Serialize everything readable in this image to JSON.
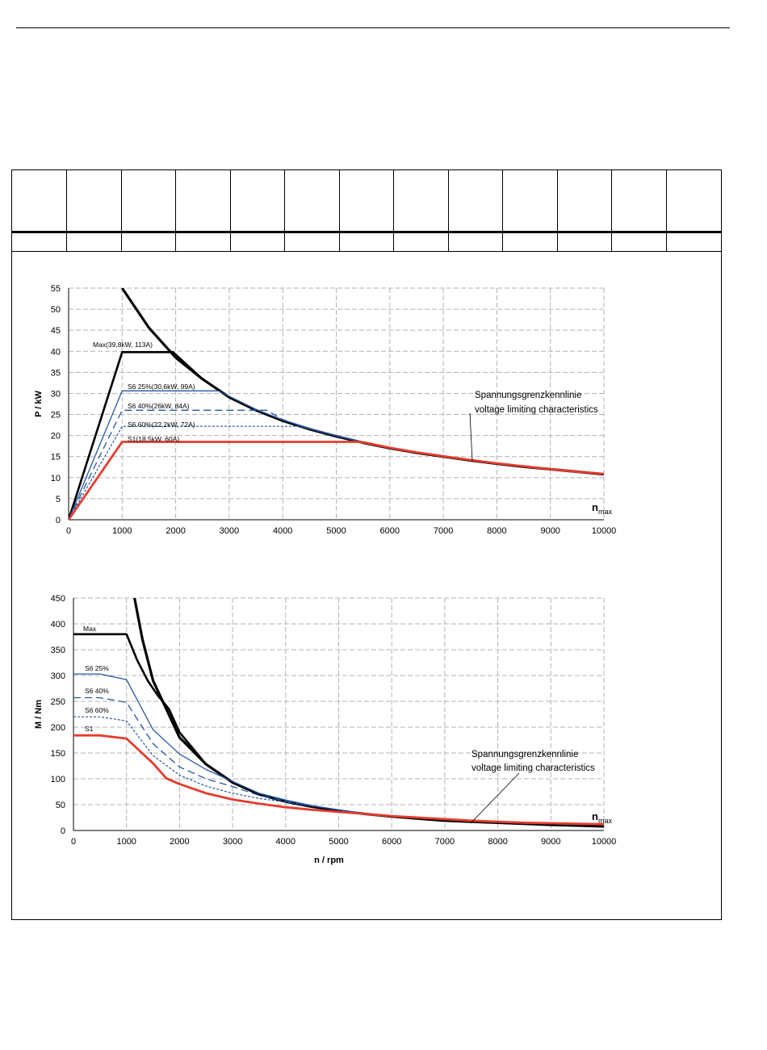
{
  "colors": {
    "max": "#000000",
    "s6": "#2457a4",
    "s1": "#e63c2e",
    "grid": "#b3b3b3"
  },
  "chart_data": [
    {
      "type": "line",
      "xlabel": "",
      "ylabel": "P / kW",
      "xlim": [
        0,
        10000
      ],
      "ylim": [
        0,
        55
      ],
      "xticks": [
        0,
        1000,
        2000,
        3000,
        4000,
        5000,
        6000,
        7000,
        8000,
        9000,
        10000
      ],
      "yticks": [
        0,
        5,
        10,
        15,
        20,
        25,
        30,
        35,
        40,
        45,
        50,
        55
      ],
      "grid": true,
      "nmax_label": {
        "main": "n",
        "sub": "max"
      },
      "annotation": {
        "line1": "Spannungsgrenzkennlinie",
        "line2": "voltage limiting characteristics"
      },
      "series": [
        {
          "name": "Max(39,8kW, 113A)",
          "style": "max",
          "x": [
            0,
            1000,
            1950,
            2500,
            3000,
            3500,
            4000,
            4500,
            5000,
            5500,
            6000,
            6500,
            7000,
            7500,
            8000,
            8500,
            9000,
            9500,
            10000
          ],
          "y": [
            0,
            39.8,
            39.8,
            33.4,
            29.1,
            26.0,
            23.5,
            21.5,
            19.8,
            18.3,
            17.0,
            15.9,
            15.0,
            14.1,
            13.3,
            12.6,
            12.0,
            11.4,
            10.8
          ]
        },
        {
          "name": "S6 25%(30,6kW, 99A)",
          "style": "s6solid",
          "x": [
            0,
            1000,
            2800,
            3000,
            3500,
            4000,
            4500,
            5000,
            5500,
            6000,
            6500,
            7000,
            7500,
            8000,
            8500,
            9000,
            9500,
            10000
          ],
          "y": [
            0,
            30.6,
            30.6,
            29.3,
            26.2,
            23.7,
            21.6,
            19.9,
            18.4,
            17.1,
            16.0,
            15.1,
            14.2,
            13.4,
            12.7,
            12.0,
            11.4,
            10.9
          ]
        },
        {
          "name": "S6 40%(26kW, 84A)",
          "style": "s6dash",
          "x": [
            0,
            1000,
            3700,
            4000,
            4500,
            5000,
            5500,
            6000,
            6500,
            7000,
            7500,
            8000,
            8500,
            9000,
            9500,
            10000
          ],
          "y": [
            0,
            26,
            26,
            23.8,
            21.6,
            19.9,
            18.4,
            17.1,
            16.0,
            15.1,
            14.2,
            13.4,
            12.7,
            12.0,
            11.4,
            10.9
          ]
        },
        {
          "name": "S6 60%(22,2kW, 72A)",
          "style": "s6dot",
          "x": [
            0,
            1000,
            4300,
            4500,
            5000,
            5500,
            6000,
            6500,
            7000,
            7500,
            8000,
            8500,
            9000,
            9500,
            10000
          ],
          "y": [
            0,
            22.2,
            22.2,
            21.6,
            19.9,
            18.4,
            17.1,
            16.0,
            15.1,
            14.2,
            13.4,
            12.7,
            12.0,
            11.4,
            10.9
          ]
        },
        {
          "name": "S1(18,5kW, 60A)",
          "style": "s1",
          "x": [
            0,
            1000,
            5400,
            5500,
            6000,
            6500,
            7000,
            7500,
            8000,
            8500,
            9000,
            9500,
            10000
          ],
          "y": [
            0,
            18.5,
            18.5,
            18.4,
            17.1,
            16.0,
            15.1,
            14.2,
            13.4,
            12.7,
            12.0,
            11.4,
            10.9
          ]
        },
        {
          "name": "",
          "style": "limit",
          "x": [
            1000,
            1500,
            2000,
            2500,
            3000,
            3500,
            4000,
            4500,
            5000,
            5500,
            6000,
            6500,
            7000,
            7500,
            8000,
            8500,
            9000,
            9500,
            10000
          ],
          "y": [
            55.0,
            45.6,
            38.5,
            33.4,
            29.1,
            26.0,
            23.5,
            21.5,
            19.8,
            18.3,
            17.0,
            15.9,
            15.0,
            14.1,
            13.3,
            12.6,
            12.0,
            11.4,
            10.8
          ]
        }
      ]
    },
    {
      "type": "line",
      "xlabel": "n / rpm",
      "ylabel": "M / Nm",
      "xlim": [
        0,
        10000
      ],
      "ylim": [
        0,
        450
      ],
      "xticks": [
        0,
        1000,
        2000,
        3000,
        4000,
        5000,
        6000,
        7000,
        8000,
        9000,
        10000
      ],
      "yticks": [
        0,
        50,
        100,
        150,
        200,
        250,
        300,
        350,
        400,
        450
      ],
      "grid": true,
      "nmax_label": {
        "main": "n",
        "sub": "max"
      },
      "annotation": {
        "line1": "Spannungsgrenzkennlinie",
        "line2": "voltage limiting characteristics"
      },
      "series": [
        {
          "name": "Max",
          "style": "max",
          "x": [
            0,
            1000,
            1200,
            1400,
            1600,
            1800,
            2000,
            2500,
            3000,
            3500,
            4000,
            4500,
            5000,
            5500,
            6000,
            6500,
            7000,
            7500,
            8000,
            8500,
            9000,
            9500,
            10000
          ],
          "y": [
            380,
            380,
            330,
            290,
            260,
            235,
            190,
            128,
            93,
            70,
            56,
            46,
            38,
            32,
            27,
            23,
            19,
            17,
            15,
            13,
            11,
            9.5,
            8
          ]
        },
        {
          "name": "S6 25%",
          "style": "s6solid",
          "x": [
            0,
            500,
            1000,
            1500,
            2000,
            2500,
            3000,
            3500,
            4000,
            4500,
            5000,
            5500,
            6000,
            6500,
            7000,
            7500,
            8000,
            8500,
            9000,
            9500,
            10000
          ],
          "y": [
            303,
            303,
            292,
            195,
            148,
            118,
            95,
            72,
            59,
            48,
            40,
            33,
            28,
            24,
            21,
            18,
            16,
            14,
            13,
            12,
            11
          ]
        },
        {
          "name": "S6 40%",
          "style": "s6dash",
          "x": [
            0,
            500,
            1000,
            1500,
            2000,
            2500,
            3000,
            3500,
            4000,
            4500,
            5000,
            5500,
            6000,
            6500,
            7000,
            7500,
            8000,
            8500,
            9000,
            9500,
            10000
          ],
          "y": [
            257,
            257,
            248,
            168,
            123,
            100,
            85,
            68,
            57,
            47,
            40,
            33,
            28,
            24,
            21,
            18,
            16,
            14,
            13,
            12,
            11
          ]
        },
        {
          "name": "S6 60%",
          "style": "s6dot",
          "x": [
            0,
            500,
            1000,
            1500,
            2000,
            2500,
            3000,
            3500,
            4000,
            4500,
            5000,
            5500,
            6000,
            6500,
            7000,
            7500,
            8000,
            8500,
            9000,
            9500,
            10000
          ],
          "y": [
            220,
            220,
            212,
            145,
            107,
            86,
            72,
            62,
            55,
            47,
            40,
            33,
            28,
            24,
            21,
            18,
            16,
            14,
            13,
            12,
            11
          ]
        },
        {
          "name": "S1",
          "style": "s1",
          "x": [
            0,
            500,
            1000,
            1500,
            1750,
            2000,
            2500,
            3000,
            3500,
            4000,
            4500,
            5000,
            5500,
            6000,
            6500,
            7000,
            7500,
            8000,
            8500,
            9000,
            9500,
            10000
          ],
          "y": [
            184,
            184,
            178,
            130,
            101,
            90,
            72,
            60,
            52,
            45,
            40,
            36,
            32,
            28,
            25,
            22,
            19,
            17,
            15,
            14,
            13,
            12
          ]
        },
        {
          "name": "",
          "style": "limit",
          "x": [
            1150,
            1300,
            1500,
            1750,
            2000,
            2500,
            3000,
            3500,
            4000,
            4500,
            5000,
            5500,
            6000,
            6500,
            7000,
            7500,
            8000,
            8500,
            9000,
            9500,
            10000
          ],
          "y": [
            450,
            370,
            290,
            235,
            180,
            128,
            93,
            70,
            56,
            46,
            38,
            32,
            27,
            23,
            19,
            17,
            15,
            13,
            11,
            9.5,
            8
          ]
        }
      ]
    }
  ]
}
